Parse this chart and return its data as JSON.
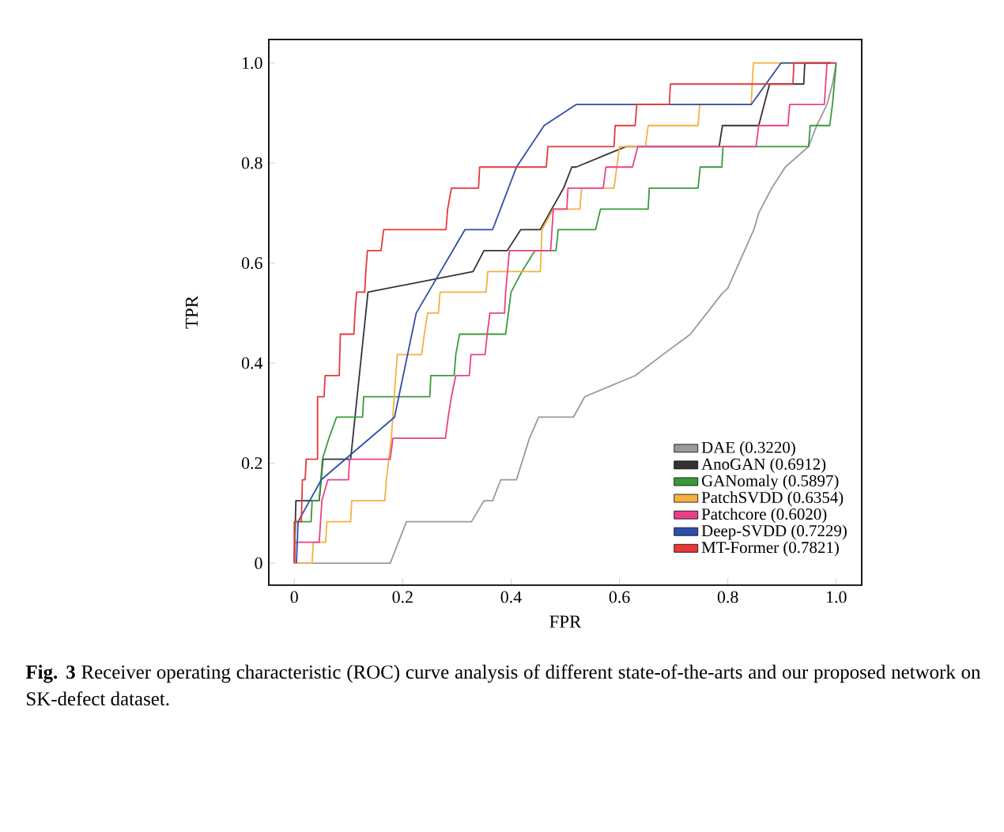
{
  "chart_data": {
    "type": "line",
    "xlabel": "FPR",
    "ylabel": "TPR",
    "xlim": [
      -0.047,
      1.047
    ],
    "ylim": [
      -0.044,
      1.047
    ],
    "xticks": [
      0,
      0.2,
      0.4,
      0.6,
      0.8,
      {
        "value": 1,
        "label": "1.0"
      }
    ],
    "yticks": [
      0,
      0.2,
      0.4,
      0.6,
      0.8,
      {
        "value": 1,
        "label": "1.0"
      }
    ],
    "grid": false,
    "legend": "bottom right",
    "series": [
      {
        "name": "DAE (0.3220)",
        "color": "#999999",
        "x": [
          0,
          0.177,
          0.207,
          0.327,
          0.35,
          0.366,
          0.381,
          0.41,
          0.434,
          0.451,
          0.515,
          0.536,
          0.629,
          0.68,
          0.731,
          0.79,
          0.8,
          0.848,
          0.857,
          0.881,
          0.906,
          0.949,
          0.964,
          0.983,
          0.993,
          1
        ],
        "values": [
          0,
          0,
          0.083,
          0.083,
          0.125,
          0.125,
          0.167,
          0.167,
          0.25,
          0.292,
          0.292,
          0.333,
          0.375,
          0.417,
          0.458,
          0.54,
          0.55,
          0.667,
          0.7,
          0.75,
          0.792,
          0.833,
          0.875,
          0.917,
          0.958,
          1
        ]
      },
      {
        "name": "AnoGAN (0.6912)",
        "color": "#333333",
        "x": [
          0,
          0.003,
          0.046,
          0.053,
          0.104,
          0.136,
          0.33,
          0.35,
          0.393,
          0.418,
          0.454,
          0.475,
          0.497,
          0.512,
          0.52,
          0.612,
          0.784,
          0.79,
          0.857,
          0.867,
          0.877,
          0.94,
          0.942,
          1
        ],
        "values": [
          0,
          0.125,
          0.125,
          0.208,
          0.208,
          0.542,
          0.583,
          0.625,
          0.625,
          0.667,
          0.667,
          0.708,
          0.75,
          0.792,
          0.792,
          0.833,
          0.833,
          0.875,
          0.875,
          0.917,
          0.958,
          0.958,
          1,
          1
        ]
      },
      {
        "name": "GANomaly (0.5897)",
        "color": "#3a9a3a",
        "x": [
          0,
          0.002,
          0.031,
          0.033,
          0.046,
          0.052,
          0.064,
          0.078,
          0.126,
          0.128,
          0.25,
          0.252,
          0.295,
          0.298,
          0.305,
          0.39,
          0.395,
          0.4,
          0.42,
          0.444,
          0.483,
          0.487,
          0.556,
          0.565,
          0.653,
          0.655,
          0.745,
          0.749,
          0.789,
          0.791,
          0.949,
          0.952,
          0.988,
          0.993,
          1
        ],
        "values": [
          0,
          0.083,
          0.083,
          0.125,
          0.125,
          0.208,
          0.25,
          0.292,
          0.292,
          0.333,
          0.333,
          0.375,
          0.375,
          0.417,
          0.458,
          0.458,
          0.5,
          0.542,
          0.583,
          0.625,
          0.625,
          0.667,
          0.667,
          0.708,
          0.708,
          0.75,
          0.75,
          0.792,
          0.792,
          0.833,
          0.833,
          0.875,
          0.875,
          0.917,
          1
        ]
      },
      {
        "name": "PatchSVDD (0.6354)",
        "color": "#f5b041",
        "x": [
          0,
          0.033,
          0.035,
          0.058,
          0.06,
          0.104,
          0.106,
          0.167,
          0.17,
          0.179,
          0.19,
          0.235,
          0.24,
          0.246,
          0.266,
          0.269,
          0.354,
          0.357,
          0.454,
          0.457,
          0.478,
          0.527,
          0.53,
          0.59,
          0.6,
          0.648,
          0.653,
          0.745,
          0.748,
          0.843,
          0.847,
          0.99
        ],
        "values": [
          0,
          0,
          0.042,
          0.042,
          0.083,
          0.083,
          0.125,
          0.125,
          0.167,
          0.25,
          0.417,
          0.417,
          0.458,
          0.5,
          0.5,
          0.542,
          0.542,
          0.583,
          0.583,
          0.667,
          0.708,
          0.708,
          0.75,
          0.75,
          0.833,
          0.833,
          0.875,
          0.875,
          0.917,
          0.917,
          1,
          1
        ]
      },
      {
        "name": "Patchcore (0.6020)",
        "color": "#e8418a",
        "x": [
          0,
          0.002,
          0.046,
          0.051,
          0.062,
          0.1,
          0.102,
          0.177,
          0.182,
          0.279,
          0.284,
          0.29,
          0.298,
          0.323,
          0.326,
          0.352,
          0.356,
          0.361,
          0.388,
          0.39,
          0.397,
          0.473,
          0.478,
          0.503,
          0.505,
          0.57,
          0.575,
          0.624,
          0.634,
          0.852,
          0.857,
          0.911,
          0.914,
          0.978,
          0.983,
          1
        ],
        "values": [
          0,
          0.042,
          0.042,
          0.125,
          0.167,
          0.167,
          0.208,
          0.208,
          0.25,
          0.25,
          0.292,
          0.333,
          0.375,
          0.375,
          0.417,
          0.417,
          0.458,
          0.5,
          0.5,
          0.542,
          0.625,
          0.625,
          0.708,
          0.708,
          0.75,
          0.75,
          0.792,
          0.792,
          0.833,
          0.833,
          0.875,
          0.875,
          0.917,
          0.917,
          1,
          1
        ]
      },
      {
        "name": "Deep-SVDD (0.7229)",
        "color": "#2e4fa8",
        "x": [
          0.004,
          0.007,
          0.05,
          0.185,
          0.225,
          0.315,
          0.366,
          0.41,
          0.461,
          0.52,
          0.843,
          0.898,
          0.99
        ],
        "values": [
          0,
          0.083,
          0.167,
          0.292,
          0.5,
          0.667,
          0.667,
          0.792,
          0.875,
          0.917,
          0.917,
          1,
          1
        ]
      },
      {
        "name": "MT-Former (0.7821)",
        "color": "#e8383a",
        "x": [
          0,
          0,
          0.013,
          0.015,
          0.02,
          0.022,
          0.043,
          0.043,
          0.055,
          0.057,
          0.083,
          0.085,
          0.11,
          0.112,
          0.115,
          0.13,
          0.132,
          0.135,
          0.16,
          0.165,
          0.28,
          0.283,
          0.29,
          0.34,
          0.342,
          0.465,
          0.468,
          0.59,
          0.592,
          0.629,
          0.632,
          0.692,
          0.694,
          0.92,
          0.922,
          0.99
        ],
        "values": [
          0,
          0.083,
          0.083,
          0.167,
          0.167,
          0.208,
          0.208,
          0.333,
          0.333,
          0.375,
          0.375,
          0.458,
          0.458,
          0.5,
          0.542,
          0.542,
          0.583,
          0.625,
          0.625,
          0.667,
          0.667,
          0.708,
          0.75,
          0.75,
          0.792,
          0.792,
          0.833,
          0.833,
          0.875,
          0.875,
          0.917,
          0.917,
          0.958,
          0.958,
          1,
          1
        ]
      }
    ],
    "annotations": [
      "**Fig. 3** Receiver operating characteristic (ROC) curve analysis of different state-of-the-arts and our proposed network on SK-defect dataset."
    ]
  }
}
